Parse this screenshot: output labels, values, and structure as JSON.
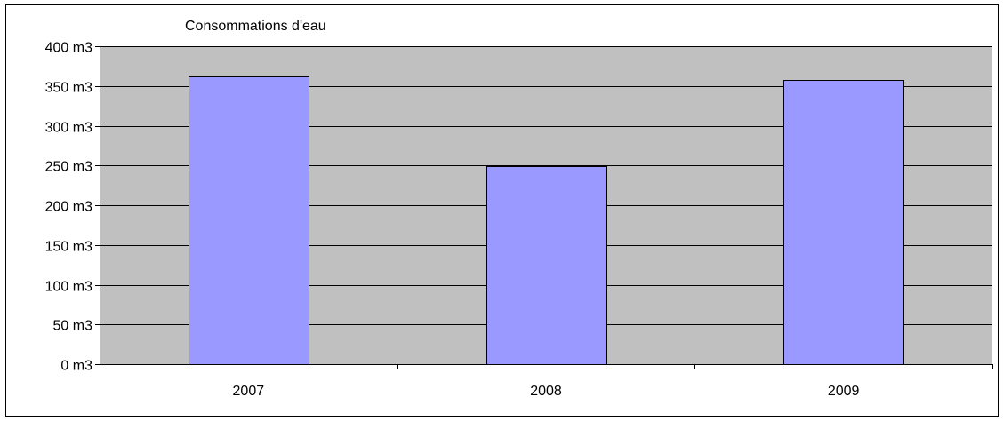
{
  "chart_data": {
    "type": "bar",
    "title": "Consommations d'eau",
    "categories": [
      "2007",
      "2008",
      "2009"
    ],
    "values": [
      362,
      249,
      358
    ],
    "unit": "m3",
    "ylim": [
      0,
      400
    ],
    "yticks": [
      0,
      50,
      100,
      150,
      200,
      250,
      300,
      350,
      400
    ],
    "ytick_labels": [
      "0 m3",
      "50 m3",
      "100 m3",
      "150 m3",
      "200 m3",
      "250 m3",
      "300 m3",
      "350 m3",
      "400 m3"
    ],
    "xlabel": "",
    "ylabel": "",
    "grid": true,
    "legend": false,
    "colors": {
      "bar_fill": "#9999ff",
      "plot_background": "#c0c0c0",
      "gridline": "#000000",
      "border": "#000000"
    }
  }
}
